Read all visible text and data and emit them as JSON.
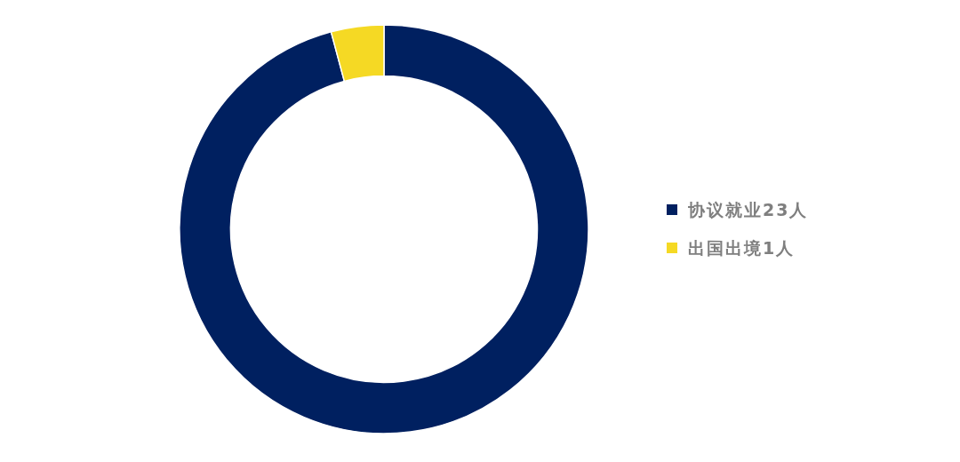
{
  "chart_data": {
    "type": "donut",
    "categories": [
      "协议就业23人",
      "出国出境1人"
    ],
    "values": [
      23,
      1
    ],
    "colors": [
      "#002060",
      "#f5d924"
    ],
    "legend": "right"
  }
}
